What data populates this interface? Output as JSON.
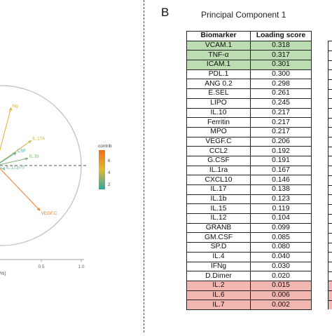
{
  "panel_a": {
    "legend_title": "contrib",
    "legend_ticks": [
      "6",
      "4",
      "2"
    ],
    "colors": {
      "high": "#f26d1d",
      "mid": "#e3b833",
      "low": "#2ba9a6",
      "circle": "#bdbdbd"
    },
    "axis_fragment": "%)"
  },
  "panel_b": {
    "panel_label": "B",
    "title": "Principal Component 1",
    "headers": {
      "name": "Biomarker",
      "score": "Loading score"
    },
    "highlight_colors": {
      "green": "#bcdcb1",
      "red": "#f3b7b1"
    }
  },
  "chart_data": [
    {
      "type": "scatter",
      "title": "",
      "xlabel": "",
      "ylabel": "",
      "x_ticks": [
        "0.5",
        "1.0"
      ],
      "xlim": [
        -0.55,
        1.05
      ],
      "ylim": [
        -0.95,
        0.95
      ],
      "grid": false,
      "legend_placement": "right",
      "color_scale": {
        "name": "contrib",
        "ticks": [
          2,
          4,
          6
        ]
      },
      "series": [
        {
          "label": "VEGF.C",
          "x": 0.48,
          "y": -0.56,
          "contrib": 6.6
        },
        {
          "label": "IL.17A",
          "x": 0.37,
          "y": 0.31,
          "contrib": 4.2
        },
        {
          "label": "IL.1b",
          "x": 0.33,
          "y": 0.09,
          "contrib": 3.1
        },
        {
          "label": "IL.12.p70",
          "x": 0.04,
          "y": -0.05,
          "contrib": 2.6
        },
        {
          "label": "CSF",
          "x": 0.18,
          "y": 0.16,
          "contrib": 2.2
        },
        {
          "label": "Ng",
          "x": 0.12,
          "y": 0.72,
          "contrib": 5.0
        }
      ]
    },
    {
      "type": "table",
      "title": "Principal Component 1",
      "columns": [
        "Biomarker",
        "Loading score"
      ],
      "rows": [
        {
          "name": "VCAM.1",
          "score": "0.318",
          "highlight": "green"
        },
        {
          "name": "TNF-α",
          "score": "0.317",
          "highlight": "green"
        },
        {
          "name": "ICAM.1",
          "score": "0.301",
          "highlight": "green"
        },
        {
          "name": "PDL.1",
          "score": "0.300",
          "highlight": ""
        },
        {
          "name": "ANG 0.2",
          "score": "0.298",
          "highlight": ""
        },
        {
          "name": "E.SEL",
          "score": "0.261",
          "highlight": ""
        },
        {
          "name": "LIPO",
          "score": "0.245",
          "highlight": ""
        },
        {
          "name": "IL.10",
          "score": "0.217",
          "highlight": ""
        },
        {
          "name": "Ferritin",
          "score": "0.217",
          "highlight": ""
        },
        {
          "name": "MPO",
          "score": "0.217",
          "highlight": ""
        },
        {
          "name": "VEGF.C",
          "score": "0.206",
          "highlight": ""
        },
        {
          "name": "CCL2",
          "score": "0.192",
          "highlight": ""
        },
        {
          "name": "G.CSF",
          "score": "0.191",
          "highlight": ""
        },
        {
          "name": "IL.1ra",
          "score": "0.167",
          "highlight": ""
        },
        {
          "name": "CXCL10",
          "score": "0.146",
          "highlight": ""
        },
        {
          "name": "IL.17",
          "score": "0.138",
          "highlight": ""
        },
        {
          "name": "IL.1b",
          "score": "0.123",
          "highlight": ""
        },
        {
          "name": "IL.15",
          "score": "0.119",
          "highlight": ""
        },
        {
          "name": "IL.12",
          "score": "0.104",
          "highlight": ""
        },
        {
          "name": "GRANB",
          "score": "0.099",
          "highlight": ""
        },
        {
          "name": "GM.CSF",
          "score": "0.085",
          "highlight": ""
        },
        {
          "name": "SP.D",
          "score": "0.080",
          "highlight": ""
        },
        {
          "name": "IL.4",
          "score": "0.040",
          "highlight": ""
        },
        {
          "name": "IFNg",
          "score": "0.030",
          "highlight": ""
        },
        {
          "name": "D.Dimer",
          "score": "0.020",
          "highlight": ""
        },
        {
          "name": "IL.2",
          "score": "0.015",
          "highlight": "red"
        },
        {
          "name": "IL.6",
          "score": "0.006",
          "highlight": "red"
        },
        {
          "name": "IL.7",
          "score": "0.002",
          "highlight": "red"
        }
      ]
    }
  ]
}
